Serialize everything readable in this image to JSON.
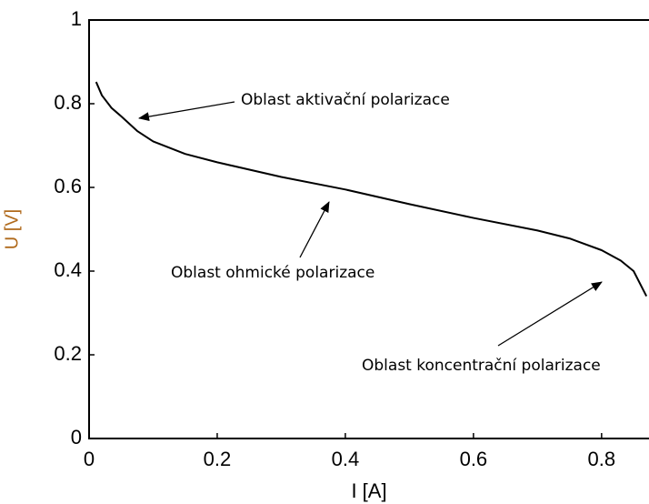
{
  "chart_data": {
    "type": "line",
    "xlabel": "I [A]",
    "ylabel": "U [V]",
    "x": [
      0.011,
      0.02,
      0.035,
      0.05,
      0.075,
      0.1,
      0.15,
      0.2,
      0.3,
      0.4,
      0.5,
      0.6,
      0.7,
      0.75,
      0.8,
      0.83,
      0.85,
      0.87
    ],
    "values": [
      0.852,
      0.82,
      0.79,
      0.77,
      0.735,
      0.71,
      0.68,
      0.66,
      0.625,
      0.595,
      0.56,
      0.527,
      0.497,
      0.478,
      0.45,
      0.425,
      0.4,
      0.34
    ],
    "color": "#000000",
    "xlim": [
      0,
      0.874
    ],
    "ylim": [
      0,
      1
    ],
    "xticks": [
      0,
      0.2,
      0.4,
      0.6,
      0.8
    ],
    "yticks": [
      0,
      0.2,
      0.4,
      0.6,
      0.8,
      1
    ],
    "annotations": [
      "Oblast aktivační polarizace",
      "Oblast ohmické polarizace",
      "Oblast koncentrační polarizace"
    ]
  }
}
